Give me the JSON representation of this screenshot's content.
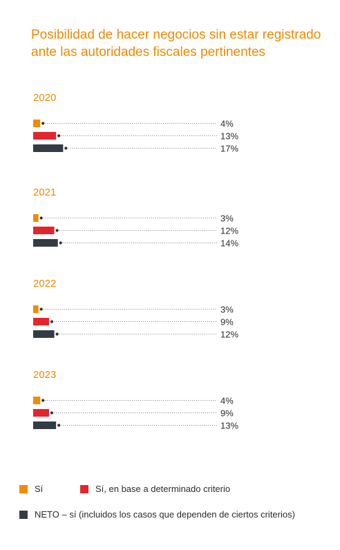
{
  "title": "Posibilidad de hacer negocios sin estar registrado ante las autoridades fiscales pertinentes",
  "legend": {
    "si": "Sí",
    "criterio": "Sí, en base a determinado criterio",
    "neto": "NETO – sí (incluidos los casos que dependen de ciertos criterios)"
  },
  "chart_data": {
    "type": "bar",
    "orientation": "horizontal",
    "title": "Posibilidad de hacer negocios sin estar registrado ante las autoridades fiscales pertinentes",
    "unit": "%",
    "xlim": [
      0,
      100
    ],
    "legend_position": "bottom",
    "grid": false,
    "series_colors": {
      "Sí": "#f08c00",
      "Sí, en base a determinado criterio": "#e3262d",
      "NETO – sí (incluidos los casos que dependen de ciertos criterios)": "#333c45"
    },
    "groups": [
      {
        "year": "2020",
        "series": [
          {
            "name": "Sí",
            "value": 4,
            "label": "4%"
          },
          {
            "name": "Sí, en base a determinado criterio",
            "value": 13,
            "label": "13%"
          },
          {
            "name": "NETO – sí (incluidos los casos que dependen de ciertos criterios)",
            "value": 17,
            "label": "17%"
          }
        ]
      },
      {
        "year": "2021",
        "series": [
          {
            "name": "Sí",
            "value": 3,
            "label": "3%"
          },
          {
            "name": "Sí, en base a determinado criterio",
            "value": 12,
            "label": "12%"
          },
          {
            "name": "NETO – sí (incluidos los casos que dependen de ciertos criterios)",
            "value": 14,
            "label": "14%"
          }
        ]
      },
      {
        "year": "2022",
        "series": [
          {
            "name": "Sí",
            "value": 3,
            "label": "3%"
          },
          {
            "name": "Sí, en base a determinado criterio",
            "value": 9,
            "label": "9%"
          },
          {
            "name": "NETO – sí (incluidos los casos que dependen de ciertos criterios)",
            "value": 12,
            "label": "12%"
          }
        ]
      },
      {
        "year": "2023",
        "series": [
          {
            "name": "Sí",
            "value": 4,
            "label": "4%"
          },
          {
            "name": "Sí, en base a determinado criterio",
            "value": 9,
            "label": "9%"
          },
          {
            "name": "NETO – sí (incluidos los casos que dependen de ciertos criterios)",
            "value": 13,
            "label": "13%"
          }
        ]
      }
    ]
  }
}
